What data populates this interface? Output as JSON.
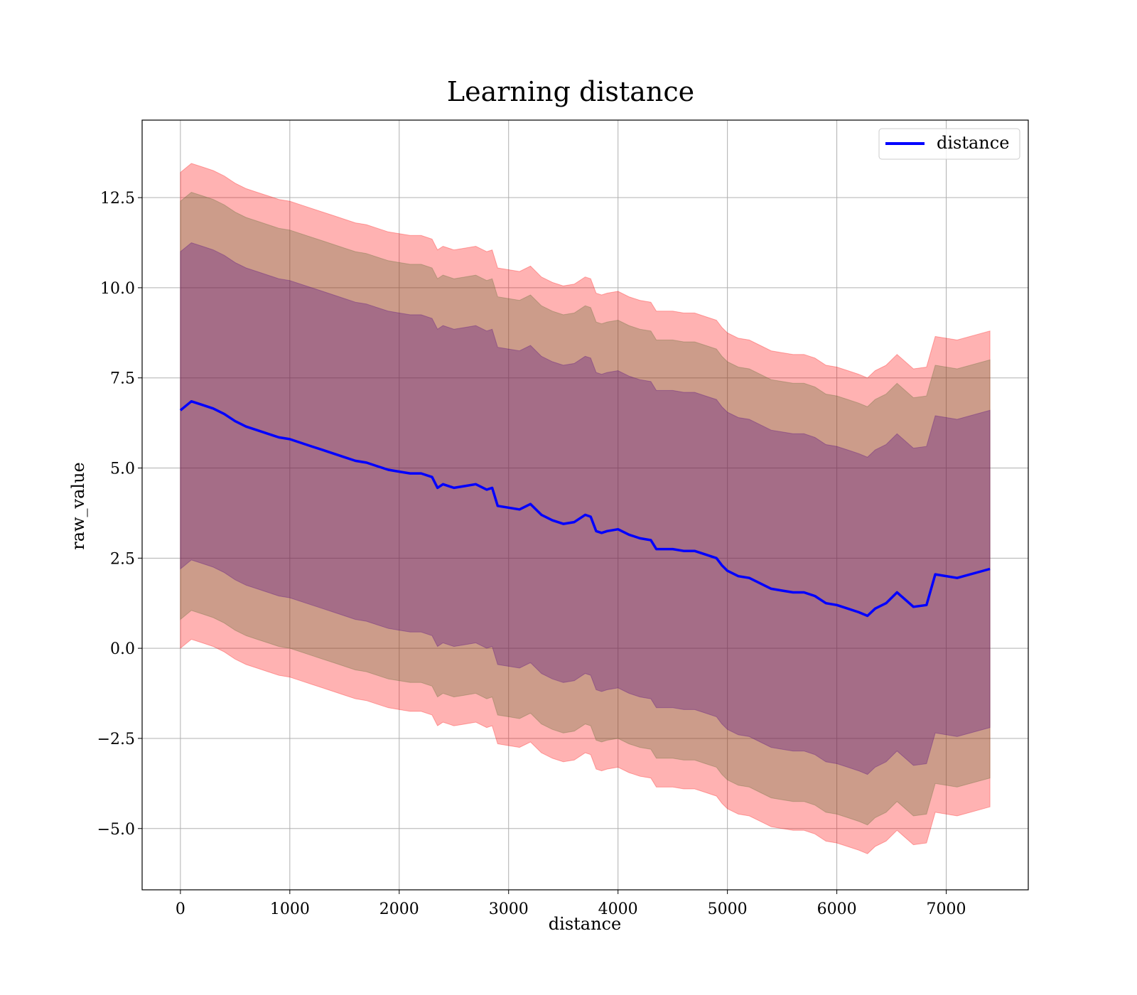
{
  "chart_data": {
    "type": "line",
    "title": "Learning distance",
    "xlabel": "distance",
    "ylabel": "raw_value",
    "xlim": [
      -350,
      7750
    ],
    "ylim": [
      -6.7,
      14.65
    ],
    "xticks": [
      0,
      1000,
      2000,
      3000,
      4000,
      5000,
      6000,
      7000
    ],
    "yticks": [
      -5.0,
      -2.5,
      0.0,
      2.5,
      5.0,
      7.5,
      10.0,
      12.5
    ],
    "xtick_labels": [
      "0",
      "1000",
      "2000",
      "3000",
      "4000",
      "5000",
      "6000",
      "7000"
    ],
    "ytick_labels": [
      "−5.0",
      "−2.5",
      "0.0",
      "2.5",
      "5.0",
      "7.5",
      "10.0",
      "12.5"
    ],
    "grid": true,
    "legend_position": "top-right",
    "series": [
      {
        "name": "distance",
        "color": "#0000ff",
        "x": [
          0,
          100,
          200,
          300,
          400,
          500,
          600,
          700,
          800,
          900,
          1000,
          1100,
          1200,
          1300,
          1400,
          1500,
          1600,
          1700,
          1800,
          1900,
          2000,
          2100,
          2200,
          2300,
          2350,
          2400,
          2500,
          2600,
          2700,
          2800,
          2850,
          2900,
          3000,
          3100,
          3200,
          3300,
          3400,
          3500,
          3600,
          3700,
          3750,
          3800,
          3850,
          3900,
          4000,
          4100,
          4200,
          4300,
          4350,
          4400,
          4500,
          4600,
          4700,
          4800,
          4900,
          4950,
          5000,
          5100,
          5200,
          5300,
          5400,
          5500,
          5600,
          5700,
          5800,
          5900,
          6000,
          6100,
          6200,
          6280,
          6350,
          6450,
          6550,
          6700,
          6820,
          6900,
          7100,
          7400
        ],
        "y": [
          6.6,
          6.85,
          6.75,
          6.65,
          6.5,
          6.3,
          6.15,
          6.05,
          5.95,
          5.85,
          5.8,
          5.7,
          5.6,
          5.5,
          5.4,
          5.3,
          5.2,
          5.15,
          5.05,
          4.95,
          4.9,
          4.85,
          4.85,
          4.75,
          4.45,
          4.55,
          4.45,
          4.5,
          4.55,
          4.4,
          4.45,
          3.95,
          3.9,
          3.85,
          4.0,
          3.7,
          3.55,
          3.45,
          3.5,
          3.7,
          3.65,
          3.25,
          3.2,
          3.25,
          3.3,
          3.15,
          3.05,
          3.0,
          2.75,
          2.75,
          2.75,
          2.7,
          2.7,
          2.6,
          2.5,
          2.3,
          2.15,
          2.0,
          1.95,
          1.8,
          1.65,
          1.6,
          1.55,
          1.55,
          1.45,
          1.25,
          1.2,
          1.1,
          1.0,
          0.9,
          1.1,
          1.25,
          1.55,
          1.15,
          1.2,
          2.05,
          1.95,
          2.2
        ]
      }
    ],
    "bands": [
      {
        "color": "#ff0000",
        "alpha": 0.3,
        "lower_offset": -6.6,
        "upper_offset": 6.6
      },
      {
        "color": "#556b2f",
        "alpha": 0.3,
        "lower_offset": -5.8,
        "upper_offset": 5.8
      },
      {
        "color": "#4b0082",
        "alpha": 0.3,
        "lower_offset": -4.4,
        "upper_offset": 4.4
      }
    ]
  }
}
